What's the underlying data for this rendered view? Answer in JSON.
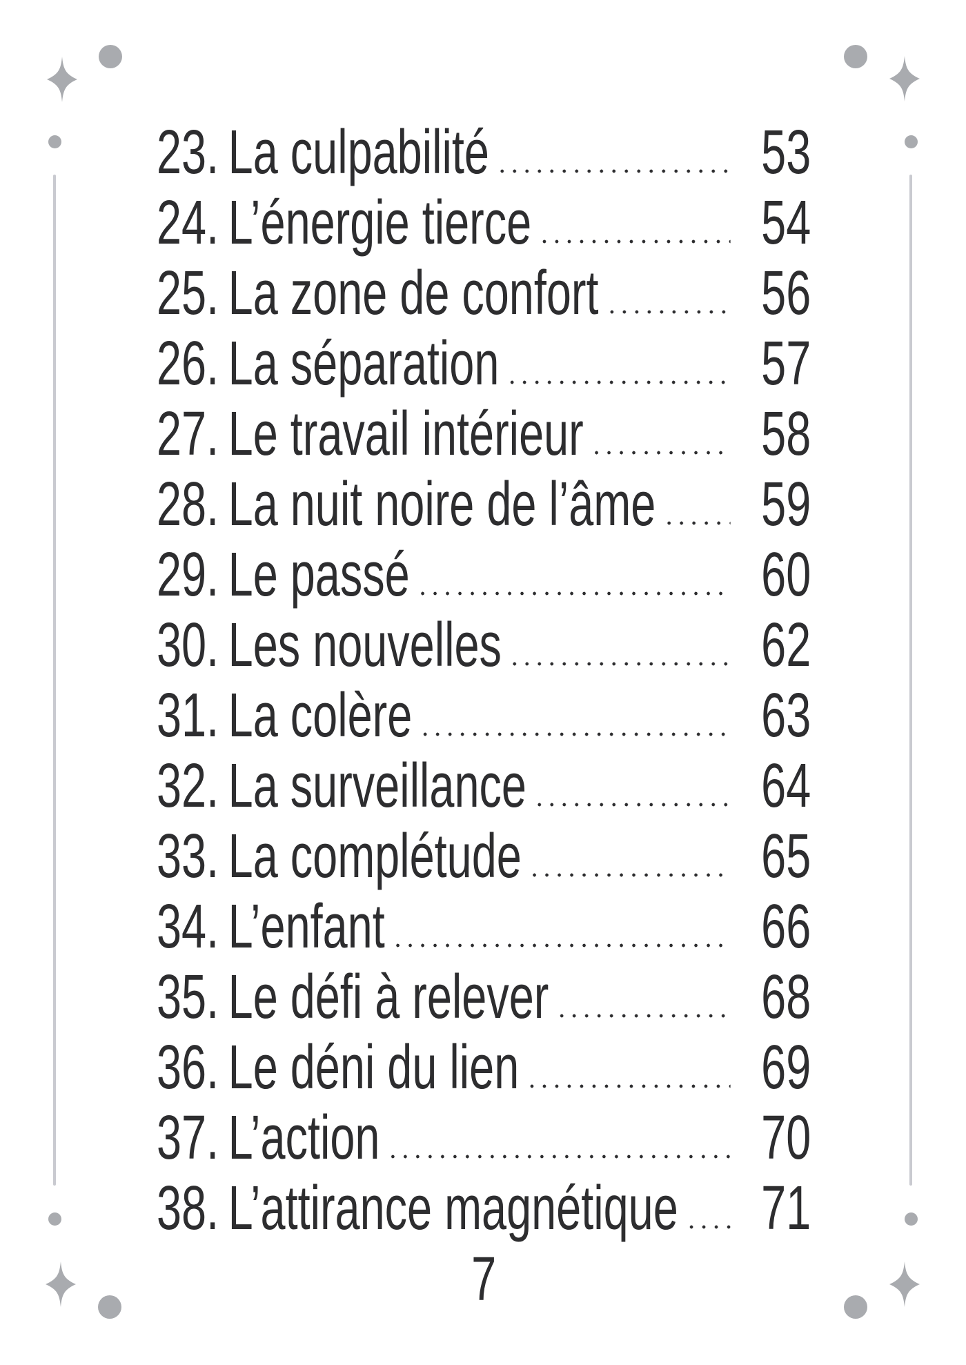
{
  "page": {
    "folio": "7",
    "language": "fr",
    "colors": {
      "ink": "#2d2d2f",
      "ornament": "#a9abaf",
      "line": "#c9cad0",
      "background": "#ffffff"
    }
  },
  "toc": {
    "entries": [
      {
        "no": "23.",
        "title": "La culpabilité",
        "page": "53"
      },
      {
        "no": "24.",
        "title": "L’énergie tierce",
        "page": "54"
      },
      {
        "no": "25.",
        "title": "La zone de confort",
        "page": "56"
      },
      {
        "no": "26.",
        "title": "La séparation",
        "page": "57"
      },
      {
        "no": "27.",
        "title": "Le travail intérieur",
        "page": "58"
      },
      {
        "no": "28.",
        "title": "La nuit noire de l’âme",
        "page": "59"
      },
      {
        "no": "29.",
        "title": "Le passé",
        "page": "60"
      },
      {
        "no": "30.",
        "title": "Les nouvelles",
        "page": "62"
      },
      {
        "no": "31.",
        "title": "La colère",
        "page": "63"
      },
      {
        "no": "32.",
        "title": "La surveillance",
        "page": "64"
      },
      {
        "no": "33.",
        "title": "La complétude",
        "page": "65"
      },
      {
        "no": "34.",
        "title": "L’enfant",
        "page": "66"
      },
      {
        "no": "35.",
        "title": "Le défi à relever",
        "page": "68"
      },
      {
        "no": "36.",
        "title": "Le déni du lien",
        "page": "69"
      },
      {
        "no": "37.",
        "title": "L’action",
        "page": "70"
      },
      {
        "no": "38.",
        "title": "L’attirance magnétique",
        "page": "71"
      }
    ]
  }
}
